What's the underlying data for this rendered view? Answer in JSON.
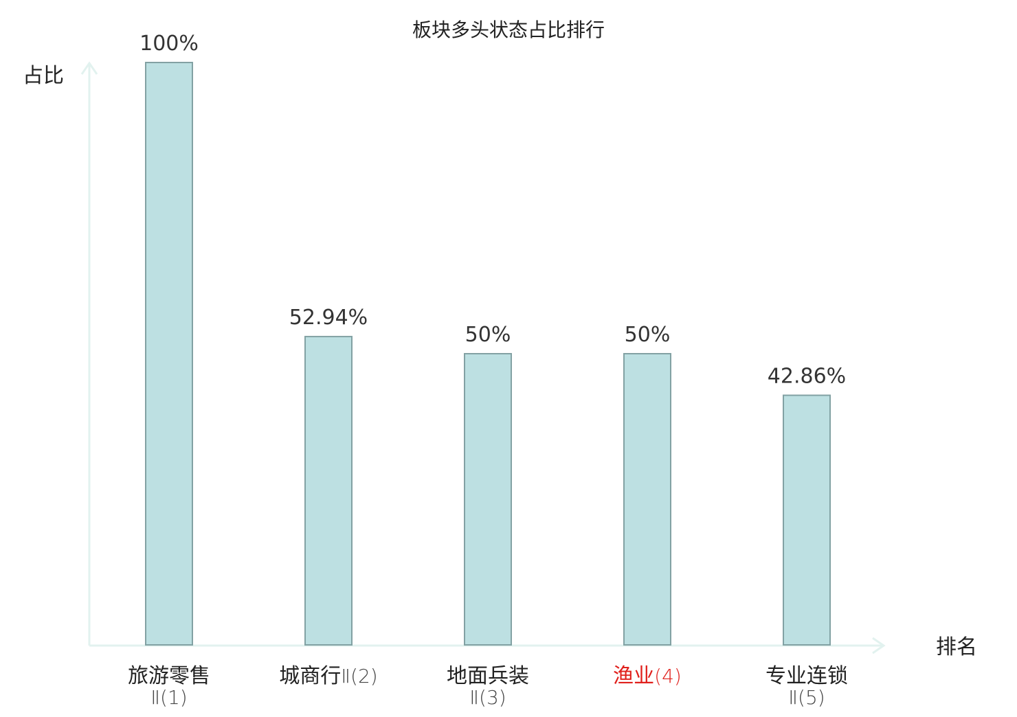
{
  "chart_data": {
    "type": "bar",
    "title": "板块多头状态占比排行",
    "xlabel": "排名",
    "ylabel": "占比",
    "ylim": [
      0,
      100
    ],
    "grid": false,
    "legend": "none",
    "categories": [
      {
        "name": "旅游零售",
        "suffix": "Ⅱ(1)",
        "highlight": false
      },
      {
        "name": "城商行",
        "suffix": "Ⅱ(2)",
        "highlight": false
      },
      {
        "name": "地面兵装",
        "suffix": "Ⅱ(3)",
        "highlight": false
      },
      {
        "name": "渔业",
        "suffix": "(4)",
        "highlight": true
      },
      {
        "name": "专业连锁",
        "suffix": "Ⅱ(5)",
        "highlight": false
      }
    ],
    "values": [
      100,
      52.94,
      50,
      50,
      42.86
    ],
    "value_labels": [
      "100%",
      "52.94%",
      "50%",
      "50%",
      "42.86%"
    ]
  },
  "colors": {
    "bar_fill": "#bde0e2",
    "bar_stroke": "#82a1a3",
    "axis": "#e2f2ef",
    "highlight_text": "#e0201c",
    "text": "#222222",
    "suffix_text": "#444444"
  }
}
